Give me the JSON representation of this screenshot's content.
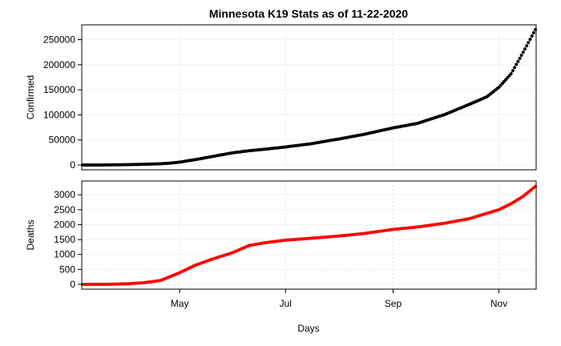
{
  "chart_data": {
    "type": "scatter",
    "title": "Minnesota K19 Stats as of 11-22-2020",
    "xlabel": "Days",
    "x_range": [
      "2020-03-06",
      "2020-11-22"
    ],
    "x_ticks": [
      {
        "date": "2020-05-01",
        "label": "May"
      },
      {
        "date": "2020-07-01",
        "label": "Jul"
      },
      {
        "date": "2020-09-01",
        "label": "Sep"
      },
      {
        "date": "2020-11-01",
        "label": "Nov"
      }
    ],
    "grid": true,
    "legend": "none",
    "panels": [
      {
        "ylabel": "Confirmed",
        "color": "#000000",
        "ylim": [
          0,
          270000
        ],
        "y_ticks": [
          0,
          50000,
          100000,
          150000,
          200000,
          250000
        ],
        "y_tick_labels": [
          "0",
          "50000",
          "100000",
          "150000",
          "200000",
          "250000"
        ],
        "points": [
          [
            "2020-03-06",
            1
          ],
          [
            "2020-03-20",
            115
          ],
          [
            "2020-04-01",
            690
          ],
          [
            "2020-04-10",
            1400
          ],
          [
            "2020-04-20",
            2500
          ],
          [
            "2020-04-25",
            3600
          ],
          [
            "2020-05-01",
            5700
          ],
          [
            "2020-05-10",
            10800
          ],
          [
            "2020-05-20",
            17000
          ],
          [
            "2020-05-31",
            24000
          ],
          [
            "2020-06-10",
            28500
          ],
          [
            "2020-06-20",
            31700
          ],
          [
            "2020-07-01",
            36000
          ],
          [
            "2020-07-15",
            42000
          ],
          [
            "2020-08-01",
            52000
          ],
          [
            "2020-08-15",
            61000
          ],
          [
            "2020-09-01",
            74000
          ],
          [
            "2020-09-15",
            83000
          ],
          [
            "2020-10-01",
            101000
          ],
          [
            "2020-10-15",
            121000
          ],
          [
            "2020-10-25",
            136000
          ],
          [
            "2020-11-01",
            155000
          ],
          [
            "2020-11-08",
            182000
          ],
          [
            "2020-11-15",
            225000
          ],
          [
            "2020-11-22",
            270000
          ]
        ]
      },
      {
        "ylabel": "Deaths",
        "color": "#ff0000",
        "ylim": [
          0,
          3300
        ],
        "y_ticks": [
          0,
          500,
          1000,
          1500,
          2000,
          2500,
          3000
        ],
        "y_tick_labels": [
          "0",
          "500",
          "1000",
          "1500",
          "2000",
          "2500",
          "3000"
        ],
        "points": [
          [
            "2020-03-06",
            0
          ],
          [
            "2020-03-20",
            1
          ],
          [
            "2020-04-01",
            18
          ],
          [
            "2020-04-10",
            50
          ],
          [
            "2020-04-20",
            130
          ],
          [
            "2020-05-01",
            390
          ],
          [
            "2020-05-10",
            640
          ],
          [
            "2020-05-20",
            850
          ],
          [
            "2020-05-31",
            1050
          ],
          [
            "2020-06-10",
            1300
          ],
          [
            "2020-06-20",
            1400
          ],
          [
            "2020-07-01",
            1480
          ],
          [
            "2020-07-15",
            1540
          ],
          [
            "2020-08-01",
            1620
          ],
          [
            "2020-08-15",
            1700
          ],
          [
            "2020-09-01",
            1840
          ],
          [
            "2020-09-15",
            1920
          ],
          [
            "2020-10-01",
            2050
          ],
          [
            "2020-10-15",
            2200
          ],
          [
            "2020-11-01",
            2500
          ],
          [
            "2020-11-08",
            2700
          ],
          [
            "2020-11-15",
            2950
          ],
          [
            "2020-11-22",
            3280
          ]
        ]
      }
    ]
  }
}
